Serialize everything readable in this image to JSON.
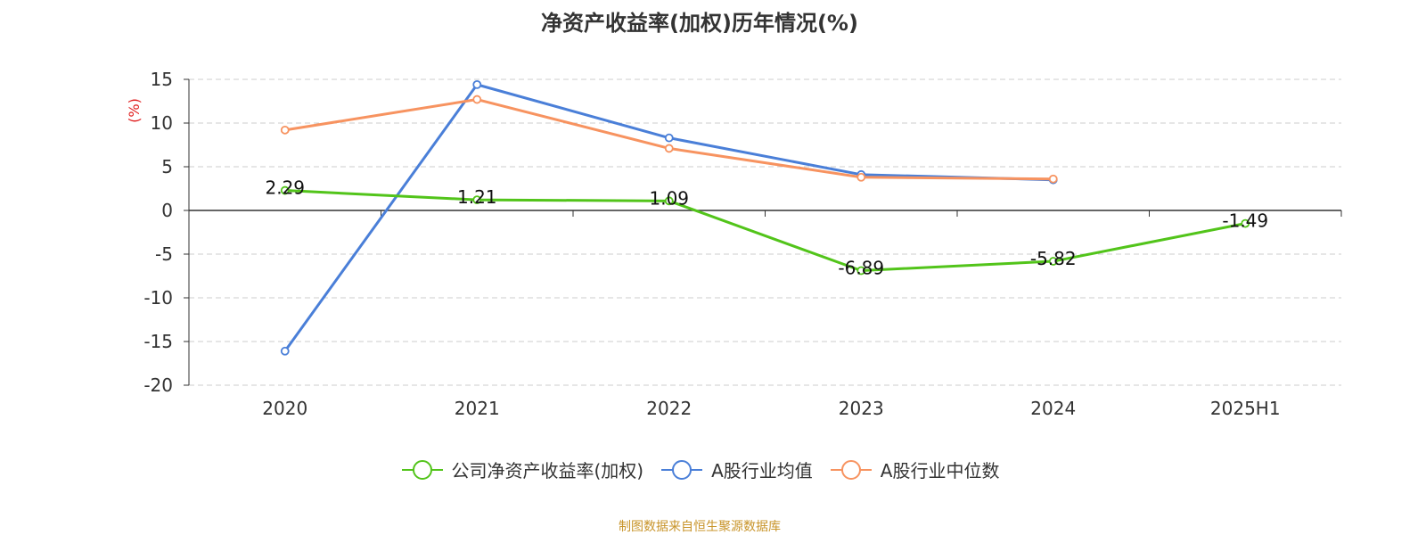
{
  "chart_data": {
    "type": "line",
    "title": "净资产收益率(加权)历年情况(%)",
    "ylabel": "(%)",
    "categories": [
      "2020",
      "2021",
      "2022",
      "2023",
      "2024",
      "2025H1"
    ],
    "ylim": [
      -20,
      15
    ],
    "yticks": [
      15,
      10,
      5,
      0,
      -5,
      -10,
      -15,
      -20
    ],
    "grid": true,
    "legend_position": "bottom",
    "series": [
      {
        "name": "公司净资产收益率(加权)",
        "color": "#52c41a",
        "values": [
          2.29,
          1.21,
          1.09,
          -6.89,
          -5.82,
          -1.49
        ],
        "labels": [
          "2.29",
          "1.21",
          "1.09",
          "-6.89",
          "-5.82",
          "-1.49"
        ]
      },
      {
        "name": "A股行业均值",
        "color": "#4a7fd8",
        "values": [
          -16.1,
          14.4,
          8.3,
          4.1,
          3.5,
          null
        ]
      },
      {
        "name": "A股行业中位数",
        "color": "#f79360",
        "values": [
          9.2,
          12.7,
          7.1,
          3.8,
          3.6,
          null
        ]
      }
    ]
  },
  "source_text": "制图数据来自恒生聚源数据库"
}
